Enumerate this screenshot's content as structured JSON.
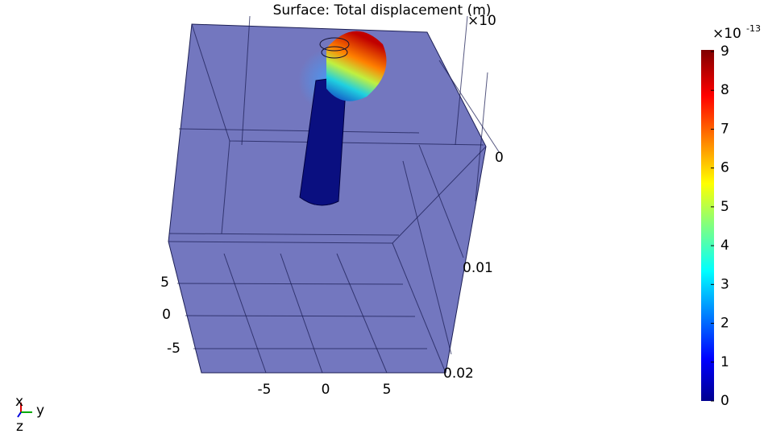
{
  "title": "Surface: Total displacement (m)",
  "x_axis": {
    "ticks": [
      "-5",
      "0",
      "5"
    ]
  },
  "y_axis": {
    "ticks": [
      "5",
      "0",
      "-5"
    ]
  },
  "z_axis": {
    "multiplier": "×10",
    "ticks": [
      "0",
      "0.01",
      "0.02"
    ]
  },
  "colorbar": {
    "multiplier": "×10",
    "exponent": "-13",
    "ticks": [
      "0",
      "1",
      "2",
      "3",
      "4",
      "5",
      "6",
      "7",
      "8",
      "9"
    ]
  },
  "triad": {
    "x": "x",
    "y": "y",
    "z": "z"
  }
}
